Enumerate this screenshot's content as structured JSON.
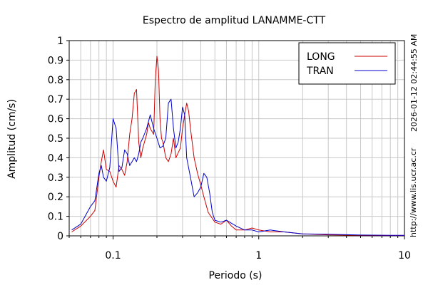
{
  "chart_data": {
    "type": "line",
    "title": "Espectro de amplitud LANAMME-CTT",
    "xlabel": "Periodo (s)",
    "ylabel": "Amplitud (cm/s)",
    "xscale": "log",
    "xlim": [
      0.05,
      10
    ],
    "ylim": [
      0,
      1
    ],
    "x_ticks": [
      0.1,
      1,
      10
    ],
    "x_tick_labels": [
      "0.1",
      "1",
      "10"
    ],
    "y_ticks": [
      0,
      0.1,
      0.2,
      0.3,
      0.4,
      0.5,
      0.6,
      0.7,
      0.8,
      0.9,
      1
    ],
    "y_tick_labels": [
      "0",
      "0.1",
      "0.2",
      "0.3",
      "0.4",
      "0.5",
      "0.6",
      "0.7",
      "0.8",
      "0.9",
      "1"
    ],
    "grid": true,
    "legend_position": "top-right",
    "series": [
      {
        "name": "LONG",
        "color": "#cc0000",
        "points": [
          [
            0.052,
            0.02
          ],
          [
            0.06,
            0.05
          ],
          [
            0.07,
            0.1
          ],
          [
            0.075,
            0.13
          ],
          [
            0.08,
            0.3
          ],
          [
            0.083,
            0.38
          ],
          [
            0.086,
            0.44
          ],
          [
            0.09,
            0.34
          ],
          [
            0.095,
            0.33
          ],
          [
            0.1,
            0.28
          ],
          [
            0.105,
            0.25
          ],
          [
            0.11,
            0.36
          ],
          [
            0.115,
            0.34
          ],
          [
            0.12,
            0.31
          ],
          [
            0.125,
            0.38
          ],
          [
            0.13,
            0.52
          ],
          [
            0.135,
            0.6
          ],
          [
            0.14,
            0.73
          ],
          [
            0.145,
            0.75
          ],
          [
            0.15,
            0.48
          ],
          [
            0.155,
            0.4
          ],
          [
            0.16,
            0.45
          ],
          [
            0.17,
            0.52
          ],
          [
            0.175,
            0.58
          ],
          [
            0.18,
            0.55
          ],
          [
            0.19,
            0.52
          ],
          [
            0.195,
            0.8
          ],
          [
            0.2,
            0.92
          ],
          [
            0.205,
            0.85
          ],
          [
            0.21,
            0.6
          ],
          [
            0.215,
            0.5
          ],
          [
            0.22,
            0.48
          ],
          [
            0.23,
            0.4
          ],
          [
            0.24,
            0.38
          ],
          [
            0.25,
            0.42
          ],
          [
            0.26,
            0.5
          ],
          [
            0.27,
            0.4
          ],
          [
            0.29,
            0.45
          ],
          [
            0.3,
            0.55
          ],
          [
            0.31,
            0.62
          ],
          [
            0.32,
            0.68
          ],
          [
            0.33,
            0.64
          ],
          [
            0.34,
            0.55
          ],
          [
            0.36,
            0.4
          ],
          [
            0.38,
            0.32
          ],
          [
            0.4,
            0.26
          ],
          [
            0.42,
            0.2
          ],
          [
            0.45,
            0.12
          ],
          [
            0.5,
            0.07
          ],
          [
            0.55,
            0.06
          ],
          [
            0.6,
            0.08
          ],
          [
            0.65,
            0.05
          ],
          [
            0.7,
            0.03
          ],
          [
            0.8,
            0.03
          ],
          [
            0.9,
            0.04
          ],
          [
            1.0,
            0.03
          ],
          [
            1.2,
            0.02
          ],
          [
            1.5,
            0.02
          ],
          [
            2.0,
            0.01
          ],
          [
            3.0,
            0.005
          ],
          [
            5.0,
            0.003
          ],
          [
            8.0,
            0.002
          ],
          [
            10.0,
            0.002
          ]
        ]
      },
      {
        "name": "TRAN",
        "color": "#0000cc",
        "points": [
          [
            0.052,
            0.03
          ],
          [
            0.06,
            0.06
          ],
          [
            0.07,
            0.15
          ],
          [
            0.075,
            0.18
          ],
          [
            0.08,
            0.32
          ],
          [
            0.083,
            0.36
          ],
          [
            0.086,
            0.3
          ],
          [
            0.09,
            0.28
          ],
          [
            0.095,
            0.35
          ],
          [
            0.1,
            0.6
          ],
          [
            0.105,
            0.55
          ],
          [
            0.11,
            0.33
          ],
          [
            0.115,
            0.35
          ],
          [
            0.12,
            0.44
          ],
          [
            0.125,
            0.42
          ],
          [
            0.13,
            0.36
          ],
          [
            0.135,
            0.38
          ],
          [
            0.14,
            0.4
          ],
          [
            0.145,
            0.38
          ],
          [
            0.15,
            0.42
          ],
          [
            0.155,
            0.48
          ],
          [
            0.16,
            0.5
          ],
          [
            0.17,
            0.55
          ],
          [
            0.18,
            0.62
          ],
          [
            0.19,
            0.55
          ],
          [
            0.2,
            0.5
          ],
          [
            0.21,
            0.45
          ],
          [
            0.22,
            0.46
          ],
          [
            0.23,
            0.5
          ],
          [
            0.24,
            0.68
          ],
          [
            0.25,
            0.7
          ],
          [
            0.26,
            0.55
          ],
          [
            0.27,
            0.45
          ],
          [
            0.28,
            0.48
          ],
          [
            0.29,
            0.55
          ],
          [
            0.3,
            0.66
          ],
          [
            0.31,
            0.62
          ],
          [
            0.32,
            0.4
          ],
          [
            0.34,
            0.3
          ],
          [
            0.36,
            0.2
          ],
          [
            0.38,
            0.22
          ],
          [
            0.4,
            0.25
          ],
          [
            0.42,
            0.32
          ],
          [
            0.44,
            0.3
          ],
          [
            0.46,
            0.22
          ],
          [
            0.48,
            0.12
          ],
          [
            0.5,
            0.08
          ],
          [
            0.55,
            0.07
          ],
          [
            0.6,
            0.08
          ],
          [
            0.7,
            0.05
          ],
          [
            0.8,
            0.03
          ],
          [
            0.9,
            0.03
          ],
          [
            1.0,
            0.02
          ],
          [
            1.2,
            0.03
          ],
          [
            1.5,
            0.02
          ],
          [
            2.0,
            0.01
          ],
          [
            3.0,
            0.008
          ],
          [
            5.0,
            0.004
          ],
          [
            8.0,
            0.003
          ],
          [
            10.0,
            0.003
          ]
        ]
      }
    ],
    "side_annotations": [
      "2026-01-12 02:44:55 AM",
      "http://www.lis.ucr.ac.cr"
    ]
  }
}
